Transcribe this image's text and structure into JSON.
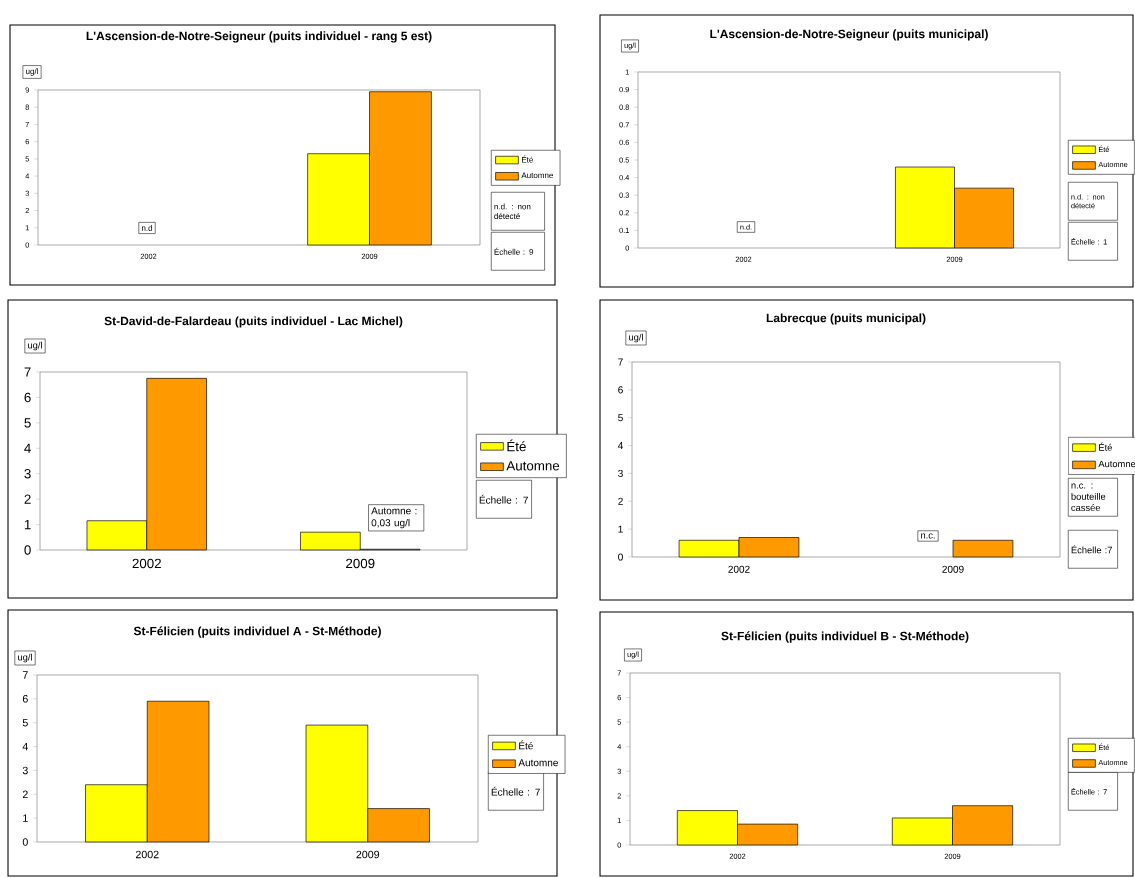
{
  "chart_data": [
    {
      "type": "bar",
      "title": "L'Ascension-de-Notre-Seigneur (puits individuel - rang 5 est)",
      "ylabel": "ug/l",
      "categories": [
        "2002",
        "2009"
      ],
      "series": [
        {
          "name": "Été",
          "color": "#ffff00",
          "values": [
            null,
            5.3
          ]
        },
        {
          "name": "Automne",
          "color": "#ff9900",
          "values": [
            null,
            8.9
          ]
        }
      ],
      "ylim": [
        0,
        9
      ],
      "yticks": [
        0,
        1,
        2,
        3,
        4,
        5,
        6,
        7,
        8,
        9
      ],
      "legend": "right",
      "annotations": [
        "n.d",
        "n.d. : non détecté",
        "Échelle : 9"
      ]
    },
    {
      "type": "bar",
      "title": "L'Ascension-de-Notre-Seigneur (puits municipal)",
      "ylabel": "ug/l",
      "categories": [
        "2002",
        "2009"
      ],
      "series": [
        {
          "name": "Été",
          "color": "#ffff00",
          "values": [
            null,
            0.46
          ]
        },
        {
          "name": "Automne",
          "color": "#ff9900",
          "values": [
            null,
            0.34
          ]
        }
      ],
      "ylim": [
        0,
        1
      ],
      "yticks": [
        0,
        0.1,
        0.2,
        0.3,
        0.4,
        0.5,
        0.6,
        0.7,
        0.8,
        0.9,
        1
      ],
      "legend": "right",
      "annotations": [
        "n.d.",
        "n.d. : non détecté",
        "Échelle : 1"
      ]
    },
    {
      "type": "bar",
      "title": "St-David-de-Falardeau (puits individuel - Lac Michel)",
      "ylabel": "ug/l",
      "categories": [
        "2002",
        "2009"
      ],
      "series": [
        {
          "name": "Été",
          "color": "#ffff00",
          "values": [
            1.15,
            0.7
          ]
        },
        {
          "name": "Automne",
          "color": "#ff9900",
          "values": [
            6.75,
            0.03
          ]
        }
      ],
      "ylim": [
        0,
        7
      ],
      "yticks": [
        0,
        1,
        2,
        3,
        4,
        5,
        6,
        7
      ],
      "legend": "right",
      "annotations": [
        {
          "text": "Automne : 0,03 ug/l",
          "x": "2009",
          "y": 0.03
        },
        "Échelle : 7"
      ]
    },
    {
      "type": "bar",
      "title": "Labrecque (puits municipal)",
      "ylabel": "ug/l",
      "categories": [
        "2002",
        "2009"
      ],
      "series": [
        {
          "name": "Été",
          "color": "#ffff00",
          "values": [
            0.6,
            null
          ]
        },
        {
          "name": "Automne",
          "color": "#ff9900",
          "values": [
            0.7,
            0.6
          ]
        }
      ],
      "ylim": [
        0,
        7
      ],
      "yticks": [
        0,
        1,
        2,
        3,
        4,
        5,
        6,
        7
      ],
      "legend": "right",
      "annotations": [
        "n.c.",
        "n.c. : bouteille cassée",
        "Échelle :7"
      ]
    },
    {
      "type": "bar",
      "title": "St-Félicien (puits individuel A - St-Méthode)",
      "ylabel": "ug/l",
      "categories": [
        "2002",
        "2009"
      ],
      "series": [
        {
          "name": "Été",
          "color": "#ffff00",
          "values": [
            2.4,
            4.9
          ]
        },
        {
          "name": "Automne",
          "color": "#ff9900",
          "values": [
            5.9,
            1.4
          ]
        }
      ],
      "ylim": [
        0,
        7
      ],
      "yticks": [
        0,
        1,
        2,
        3,
        4,
        5,
        6,
        7
      ],
      "legend": "right",
      "annotations": [
        "Échelle : 7"
      ]
    },
    {
      "type": "bar",
      "title": "St-Félicien (puits individuel B - St-Méthode)",
      "ylabel": "ug/l",
      "categories": [
        "2002",
        "2009"
      ],
      "series": [
        {
          "name": "Été",
          "color": "#ffff00",
          "values": [
            1.4,
            1.1
          ]
        },
        {
          "name": "Automne",
          "color": "#ff9900",
          "values": [
            0.85,
            1.6
          ]
        }
      ],
      "ylim": [
        0,
        7
      ],
      "yticks": [
        0,
        1,
        2,
        3,
        4,
        5,
        6,
        7
      ],
      "legend": "right",
      "annotations": [
        "Échelle : 7"
      ]
    }
  ]
}
